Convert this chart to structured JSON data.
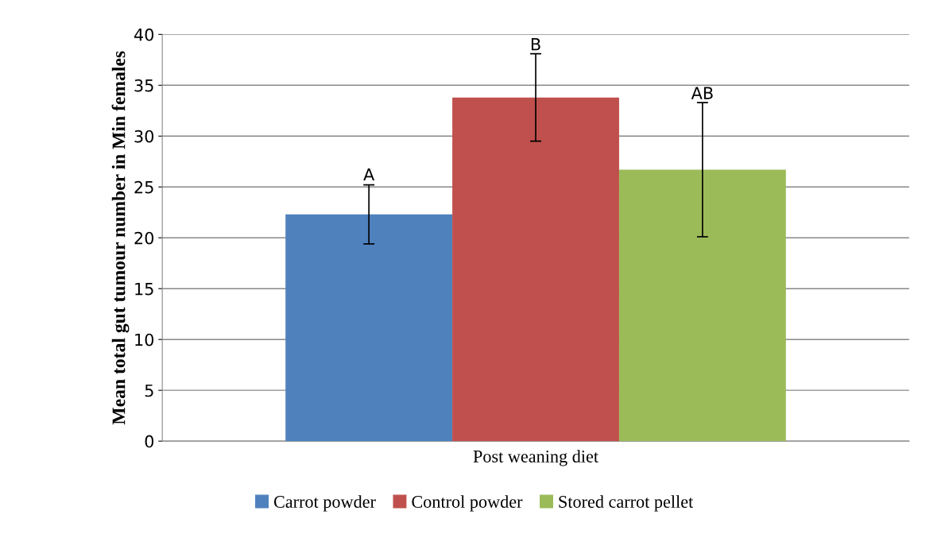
{
  "chart_data": {
    "type": "bar",
    "xlabel": "Post weaning diet",
    "ylabel": "Mean total gut tumour number in Min females",
    "categories": [
      null
    ],
    "series": [
      {
        "name": "Carrot powder",
        "color": "#4f81bd",
        "values": [
          22.3
        ],
        "errors": [
          2.9
        ]
      },
      {
        "name": "Control powder",
        "color": "#c0504d",
        "values": [
          33.8
        ],
        "errors": [
          4.3
        ]
      },
      {
        "name": "Stored carrot pellet",
        "color": "#9bbb59",
        "values": [
          26.7
        ],
        "errors": [
          6.6
        ]
      }
    ],
    "annotations": [
      {
        "text": "A",
        "y": 25.3
      },
      {
        "text": "B",
        "y": 38.1
      },
      {
        "text": "AB",
        "y": 33.3
      }
    ],
    "ylim": [
      0,
      40
    ],
    "yticks": [
      0,
      5,
      10,
      15,
      20,
      25,
      30,
      35,
      40
    ],
    "grid": "y",
    "legend": "bottom"
  }
}
